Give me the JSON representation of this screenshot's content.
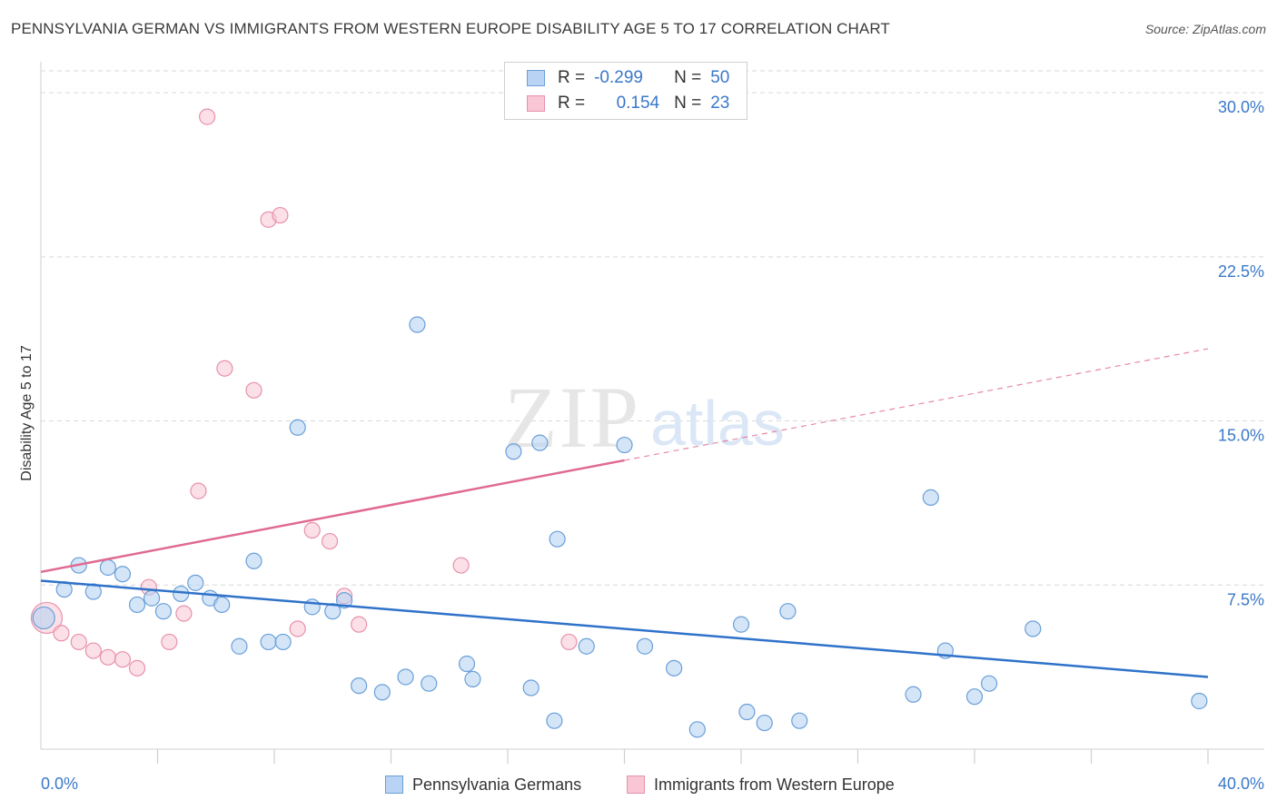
{
  "title": "PENNSYLVANIA GERMAN VS IMMIGRANTS FROM WESTERN EUROPE DISABILITY AGE 5 TO 17 CORRELATION CHART",
  "source": "Source: ZipAtlas.com",
  "watermark": {
    "zip": "ZIP",
    "atlas": "atlas"
  },
  "legend": {
    "r_label": "R =",
    "n_label": "N =",
    "series1": {
      "r": "-0.299",
      "n": "50"
    },
    "series2": {
      "r": "0.154",
      "n": "23"
    }
  },
  "colors": {
    "blue_fill": "#b8d3f3",
    "blue_stroke": "#6a9fd8",
    "blue_line": "#2f72c9",
    "pink_fill": "#f8c6d4",
    "pink_stroke": "#e891ab",
    "pink_line": "#e06a92",
    "tick_text": "#3a78c9",
    "grid": "#d9d9d9"
  },
  "chart_data": {
    "type": "scatter",
    "title": "PENNSYLVANIA GERMAN VS IMMIGRANTS FROM WESTERN EUROPE DISABILITY AGE 5 TO 17 CORRELATION CHART",
    "xlabel": "",
    "ylabel": "Disability Age 5 to 17",
    "xlim": [
      0,
      40
    ],
    "ylim": [
      0,
      31
    ],
    "x_tick_labels": [
      "0.0%",
      "40.0%"
    ],
    "y_ticks": [
      7.5,
      15.0,
      22.5,
      30.0
    ],
    "y_tick_labels": [
      "7.5%",
      "15.0%",
      "22.5%",
      "30.0%"
    ],
    "series": [
      {
        "name": "Pennsylvania Germans",
        "r": -0.299,
        "n": 50,
        "points": [
          [
            0.1,
            6.0
          ],
          [
            0.8,
            7.3
          ],
          [
            1.3,
            8.4
          ],
          [
            1.8,
            7.2
          ],
          [
            2.3,
            8.3
          ],
          [
            2.8,
            8.0
          ],
          [
            3.3,
            6.6
          ],
          [
            3.8,
            6.9
          ],
          [
            4.2,
            6.3
          ],
          [
            4.8,
            7.1
          ],
          [
            5.3,
            7.6
          ],
          [
            5.8,
            6.9
          ],
          [
            6.2,
            6.6
          ],
          [
            6.8,
            4.7
          ],
          [
            7.3,
            8.6
          ],
          [
            7.8,
            4.9
          ],
          [
            8.3,
            4.9
          ],
          [
            8.8,
            14.7
          ],
          [
            9.3,
            6.5
          ],
          [
            10.0,
            6.3
          ],
          [
            10.4,
            6.8
          ],
          [
            10.9,
            2.9
          ],
          [
            11.7,
            2.6
          ],
          [
            12.5,
            3.3
          ],
          [
            12.9,
            19.4
          ],
          [
            13.3,
            3.0
          ],
          [
            14.6,
            3.9
          ],
          [
            14.8,
            3.2
          ],
          [
            16.2,
            13.6
          ],
          [
            16.8,
            2.8
          ],
          [
            17.1,
            14.0
          ],
          [
            17.6,
            1.3
          ],
          [
            17.7,
            9.6
          ],
          [
            18.7,
            4.7
          ],
          [
            20.0,
            13.9
          ],
          [
            20.7,
            4.7
          ],
          [
            21.7,
            3.7
          ],
          [
            22.5,
            0.9
          ],
          [
            24.0,
            5.7
          ],
          [
            24.2,
            1.7
          ],
          [
            24.8,
            1.2
          ],
          [
            25.6,
            6.3
          ],
          [
            26.0,
            1.3
          ],
          [
            29.9,
            2.5
          ],
          [
            30.5,
            11.5
          ],
          [
            31.0,
            4.5
          ],
          [
            32.0,
            2.4
          ],
          [
            32.5,
            3.0
          ],
          [
            34.0,
            5.5
          ],
          [
            39.7,
            2.2
          ]
        ],
        "trend": {
          "x": [
            0,
            40
          ],
          "y": [
            7.7,
            3.3
          ]
        }
      },
      {
        "name": "Immigrants from Western Europe",
        "r": 0.154,
        "n": 23,
        "points": [
          [
            0.2,
            6.0
          ],
          [
            0.7,
            5.3
          ],
          [
            1.3,
            4.9
          ],
          [
            1.8,
            4.5
          ],
          [
            2.3,
            4.2
          ],
          [
            2.8,
            4.1
          ],
          [
            3.3,
            3.7
          ],
          [
            3.7,
            7.4
          ],
          [
            4.4,
            4.9
          ],
          [
            4.9,
            6.2
          ],
          [
            5.4,
            11.8
          ],
          [
            5.7,
            28.9
          ],
          [
            6.3,
            17.4
          ],
          [
            7.3,
            16.4
          ],
          [
            7.8,
            24.2
          ],
          [
            8.2,
            24.4
          ],
          [
            8.8,
            5.5
          ],
          [
            9.3,
            10.0
          ],
          [
            9.9,
            9.5
          ],
          [
            10.4,
            7.0
          ],
          [
            10.9,
            5.7
          ],
          [
            14.4,
            8.4
          ],
          [
            18.1,
            4.9
          ]
        ],
        "trend_solid": {
          "x": [
            0,
            20
          ],
          "y": [
            8.1,
            13.2
          ]
        },
        "trend_dashed": {
          "x": [
            20,
            40
          ],
          "y": [
            13.2,
            18.3
          ]
        }
      }
    ]
  },
  "bottom_legend": {
    "series1_label": "Pennsylvania Germans",
    "series2_label": "Immigrants from Western Europe"
  }
}
